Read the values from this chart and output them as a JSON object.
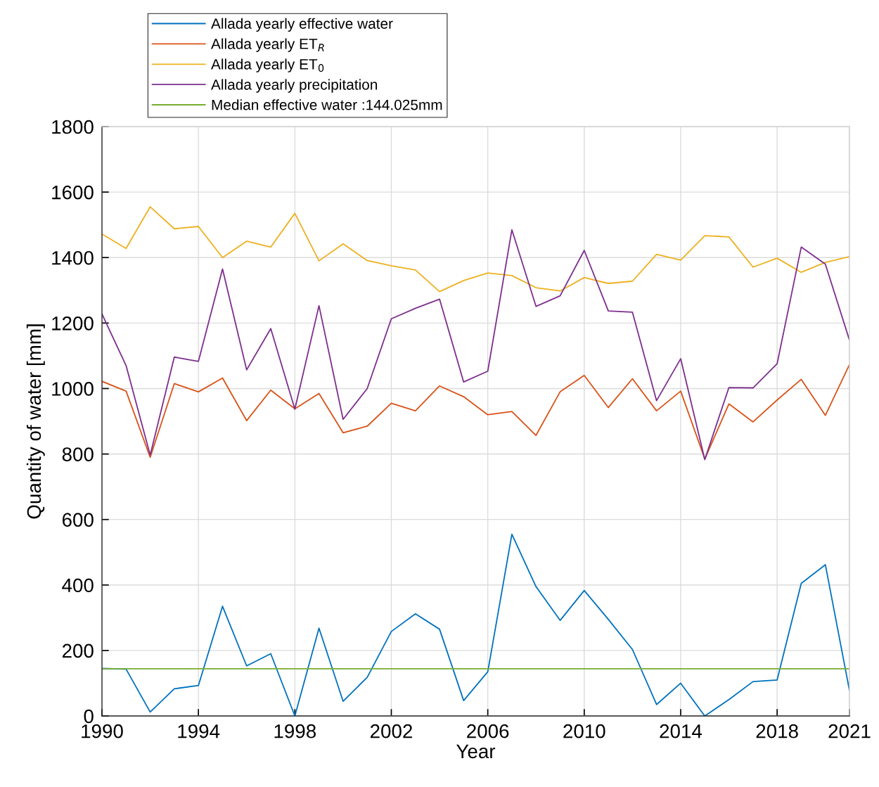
{
  "chart_data": {
    "type": "line",
    "xlabel": "Year",
    "ylabel": "Quantity of water [mm]",
    "x": [
      1990,
      1991,
      1992,
      1993,
      1994,
      1995,
      1996,
      1997,
      1998,
      1999,
      2000,
      2001,
      2002,
      2003,
      2004,
      2005,
      2006,
      2007,
      2008,
      2009,
      2010,
      2011,
      2012,
      2013,
      2014,
      2015,
      2016,
      2017,
      2018,
      2019,
      2020,
      2021
    ],
    "series": [
      {
        "name": "Allada yearly effective water",
        "color": "#0072bd",
        "values": [
          145,
          143,
          12,
          83,
          93,
          335,
          153,
          190,
          0,
          268,
          45,
          118,
          258,
          312,
          265,
          47,
          135,
          555,
          395,
          292,
          383,
          295,
          203,
          35,
          100,
          0,
          50,
          105,
          110,
          405,
          462,
          78
        ]
      },
      {
        "name": "Allada yearly ET$_{R}$",
        "color": "#d95319",
        "values": [
          1022,
          992,
          790,
          1015,
          990,
          1032,
          902,
          995,
          938,
          985,
          865,
          885,
          955,
          932,
          1008,
          975,
          920,
          930,
          857,
          990,
          1040,
          942,
          1030,
          932,
          992,
          785,
          953,
          898,
          965,
          1028,
          918,
          1073
        ]
      },
      {
        "name": "Allada yearly ET$_{0}$",
        "color": "#edb120",
        "values": [
          1472,
          1428,
          1555,
          1488,
          1495,
          1400,
          1450,
          1432,
          1535,
          1390,
          1442,
          1391,
          1375,
          1362,
          1296,
          1330,
          1353,
          1345,
          1308,
          1298,
          1339,
          1321,
          1328,
          1410,
          1392,
          1467,
          1463,
          1371,
          1398,
          1355,
          1385,
          1403
        ]
      },
      {
        "name": "Allada yearly precipitation",
        "color": "#7e2f8e",
        "values": [
          1228,
          1070,
          797,
          1096,
          1083,
          1365,
          1057,
          1183,
          937,
          1253,
          906,
          1000,
          1213,
          1245,
          1273,
          1020,
          1053,
          1485,
          1251,
          1283,
          1422,
          1237,
          1233,
          963,
          1091,
          783,
          1003,
          1002,
          1076,
          1432,
          1380,
          1148
        ]
      },
      {
        "name": "Median effective water :144.025mm",
        "color": "#77ac30",
        "x": [
          1990,
          2021
        ],
        "values": [
          144.025,
          144.025
        ]
      }
    ],
    "xlim": [
      1990,
      2021
    ],
    "xticks": [
      1990,
      1994,
      1998,
      2002,
      2006,
      2010,
      2014,
      2018,
      2021
    ],
    "ylim": [
      0,
      1800
    ],
    "yticks": [
      0,
      200,
      400,
      600,
      800,
      1000,
      1200,
      1400,
      1600,
      1800
    ],
    "grid": true,
    "legend": "top",
    "marker": "none",
    "line_style": "solid"
  }
}
